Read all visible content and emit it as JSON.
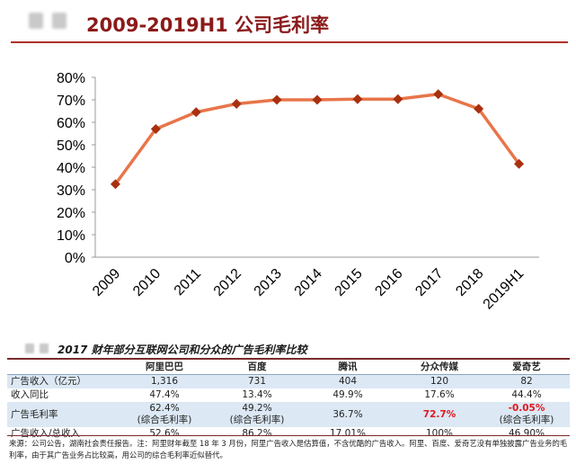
{
  "header": {
    "title": "2009-2019H1 公司毛利率",
    "accent_color": "#8b1a1a"
  },
  "chart_data": {
    "type": "line",
    "title": "2009-2019H1 公司毛利率",
    "categories": [
      "2009",
      "2010",
      "2011",
      "2012",
      "2013",
      "2014",
      "2015",
      "2016",
      "2017",
      "2018",
      "2019H1"
    ],
    "series": [
      {
        "values": [
          32.5,
          57,
          64.5,
          68.2,
          70,
          70,
          70.3,
          70.3,
          72.5,
          66,
          41.5
        ],
        "color": "#e8754a",
        "marker_color": "#a8300e"
      }
    ],
    "yticks": [
      "0%",
      "10%",
      "20%",
      "30%",
      "40%",
      "50%",
      "60%",
      "70%",
      "80%"
    ],
    "ylim": [
      0,
      80
    ],
    "grid": false,
    "legend": "none"
  },
  "table": {
    "title": "2017 财年部分互联网公司和分众的广告毛利率比较",
    "columns": [
      "",
      "阿里巴巴",
      "百度",
      "腾讯",
      "分众传媒",
      "爱奇艺"
    ],
    "rows": [
      {
        "label": "广告收入（亿元）",
        "cells": [
          "1,316",
          "731",
          "404",
          "120",
          "82"
        ]
      },
      {
        "label": "收入同比",
        "cells": [
          "47.4%",
          "13.4%",
          "49.9%",
          "17.6%",
          "44.4%"
        ]
      },
      {
        "label": "广告毛利率",
        "cells": [
          "62.4%",
          "49.2%",
          "36.7%",
          "72.7%",
          "-0.05%"
        ],
        "subcells": [
          "(综合毛利率)",
          "(综合毛利率)",
          "",
          "",
          "(综合毛利率)"
        ]
      },
      {
        "label": "广告收入/总收入",
        "cells": [
          "52.6%",
          "86.2%",
          "17.01%",
          "100%",
          "46.90%"
        ]
      }
    ],
    "source": "来源：公司公告，湖南社会责任报告。注：阿里财年截至 18 年 3 月份，阿里广告收入是估算值，不含优酷的广告收入。阿里、百度、爱奇艺没有单独披露广告业务的毛利率，由于其广告业务占比较高，用公司的综合毛利率近似替代。"
  }
}
